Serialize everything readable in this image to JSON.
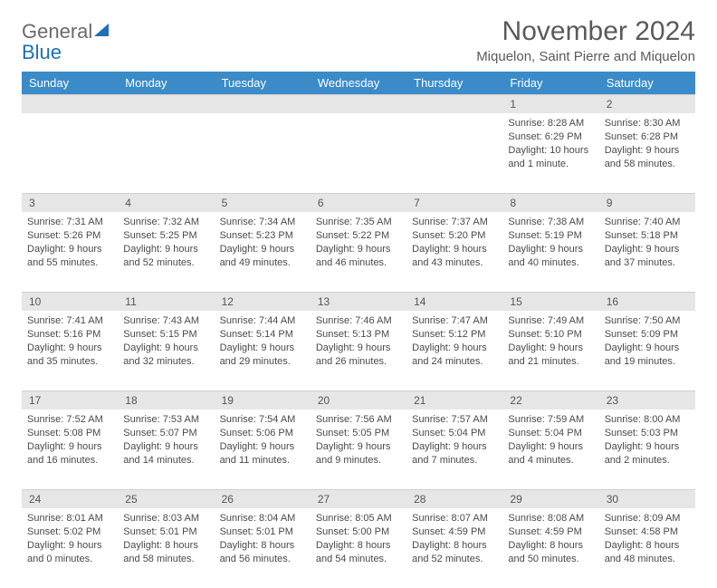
{
  "brand": {
    "word1": "General",
    "word2": "Blue"
  },
  "colors": {
    "header_bg": "#3b8bc9",
    "header_fg": "#ffffff",
    "daynum_bg": "#e6e6e6",
    "text": "#4a4a4a",
    "title": "#5a5a5a",
    "logo_gray": "#6a6a6a",
    "logo_blue": "#1f6fb2"
  },
  "title": "November 2024",
  "location": "Miquelon, Saint Pierre and Miquelon",
  "weekdays": [
    "Sunday",
    "Monday",
    "Tuesday",
    "Wednesday",
    "Thursday",
    "Friday",
    "Saturday"
  ],
  "weeks": [
    [
      null,
      null,
      null,
      null,
      null,
      {
        "n": "1",
        "sunrise": "8:28 AM",
        "sunset": "6:29 PM",
        "daylight": "10 hours and 1 minute."
      },
      {
        "n": "2",
        "sunrise": "8:30 AM",
        "sunset": "6:28 PM",
        "daylight": "9 hours and 58 minutes."
      }
    ],
    [
      {
        "n": "3",
        "sunrise": "7:31 AM",
        "sunset": "5:26 PM",
        "daylight": "9 hours and 55 minutes."
      },
      {
        "n": "4",
        "sunrise": "7:32 AM",
        "sunset": "5:25 PM",
        "daylight": "9 hours and 52 minutes."
      },
      {
        "n": "5",
        "sunrise": "7:34 AM",
        "sunset": "5:23 PM",
        "daylight": "9 hours and 49 minutes."
      },
      {
        "n": "6",
        "sunrise": "7:35 AM",
        "sunset": "5:22 PM",
        "daylight": "9 hours and 46 minutes."
      },
      {
        "n": "7",
        "sunrise": "7:37 AM",
        "sunset": "5:20 PM",
        "daylight": "9 hours and 43 minutes."
      },
      {
        "n": "8",
        "sunrise": "7:38 AM",
        "sunset": "5:19 PM",
        "daylight": "9 hours and 40 minutes."
      },
      {
        "n": "9",
        "sunrise": "7:40 AM",
        "sunset": "5:18 PM",
        "daylight": "9 hours and 37 minutes."
      }
    ],
    [
      {
        "n": "10",
        "sunrise": "7:41 AM",
        "sunset": "5:16 PM",
        "daylight": "9 hours and 35 minutes."
      },
      {
        "n": "11",
        "sunrise": "7:43 AM",
        "sunset": "5:15 PM",
        "daylight": "9 hours and 32 minutes."
      },
      {
        "n": "12",
        "sunrise": "7:44 AM",
        "sunset": "5:14 PM",
        "daylight": "9 hours and 29 minutes."
      },
      {
        "n": "13",
        "sunrise": "7:46 AM",
        "sunset": "5:13 PM",
        "daylight": "9 hours and 26 minutes."
      },
      {
        "n": "14",
        "sunrise": "7:47 AM",
        "sunset": "5:12 PM",
        "daylight": "9 hours and 24 minutes."
      },
      {
        "n": "15",
        "sunrise": "7:49 AM",
        "sunset": "5:10 PM",
        "daylight": "9 hours and 21 minutes."
      },
      {
        "n": "16",
        "sunrise": "7:50 AM",
        "sunset": "5:09 PM",
        "daylight": "9 hours and 19 minutes."
      }
    ],
    [
      {
        "n": "17",
        "sunrise": "7:52 AM",
        "sunset": "5:08 PM",
        "daylight": "9 hours and 16 minutes."
      },
      {
        "n": "18",
        "sunrise": "7:53 AM",
        "sunset": "5:07 PM",
        "daylight": "9 hours and 14 minutes."
      },
      {
        "n": "19",
        "sunrise": "7:54 AM",
        "sunset": "5:06 PM",
        "daylight": "9 hours and 11 minutes."
      },
      {
        "n": "20",
        "sunrise": "7:56 AM",
        "sunset": "5:05 PM",
        "daylight": "9 hours and 9 minutes."
      },
      {
        "n": "21",
        "sunrise": "7:57 AM",
        "sunset": "5:04 PM",
        "daylight": "9 hours and 7 minutes."
      },
      {
        "n": "22",
        "sunrise": "7:59 AM",
        "sunset": "5:04 PM",
        "daylight": "9 hours and 4 minutes."
      },
      {
        "n": "23",
        "sunrise": "8:00 AM",
        "sunset": "5:03 PM",
        "daylight": "9 hours and 2 minutes."
      }
    ],
    [
      {
        "n": "24",
        "sunrise": "8:01 AM",
        "sunset": "5:02 PM",
        "daylight": "9 hours and 0 minutes."
      },
      {
        "n": "25",
        "sunrise": "8:03 AM",
        "sunset": "5:01 PM",
        "daylight": "8 hours and 58 minutes."
      },
      {
        "n": "26",
        "sunrise": "8:04 AM",
        "sunset": "5:01 PM",
        "daylight": "8 hours and 56 minutes."
      },
      {
        "n": "27",
        "sunrise": "8:05 AM",
        "sunset": "5:00 PM",
        "daylight": "8 hours and 54 minutes."
      },
      {
        "n": "28",
        "sunrise": "8:07 AM",
        "sunset": "4:59 PM",
        "daylight": "8 hours and 52 minutes."
      },
      {
        "n": "29",
        "sunrise": "8:08 AM",
        "sunset": "4:59 PM",
        "daylight": "8 hours and 50 minutes."
      },
      {
        "n": "30",
        "sunrise": "8:09 AM",
        "sunset": "4:58 PM",
        "daylight": "8 hours and 48 minutes."
      }
    ]
  ],
  "labels": {
    "sunrise": "Sunrise: ",
    "sunset": "Sunset: ",
    "daylight": "Daylight: "
  }
}
